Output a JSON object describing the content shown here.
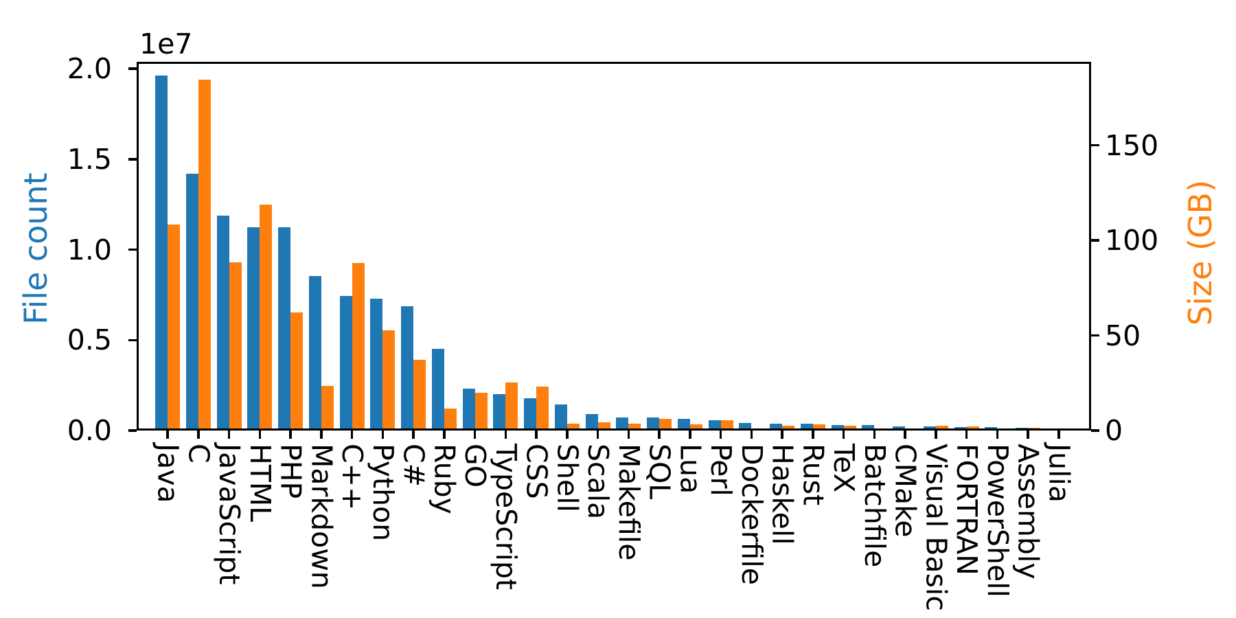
{
  "chart_data": {
    "type": "bar",
    "title": "",
    "offset_text_left": "1e7",
    "ylabel_left": "File count",
    "ylabel_right": "Size (GB)",
    "grid": false,
    "legend": "none",
    "x_tick_rotation_deg": 270,
    "categories": [
      "Java",
      "C",
      "JavaScript",
      "HTML",
      "PHP",
      "Markdown",
      "C++",
      "Python",
      "C#",
      "Ruby",
      "GO",
      "TypeScript",
      "CSS",
      "Shell",
      "Scala",
      "Makefile",
      "SQL",
      "Lua",
      "Perl",
      "Dockerfile",
      "Haskell",
      "Rust",
      "TeX",
      "Batchfile",
      "CMake",
      "Visual Basic",
      "FORTRAN",
      "PowerShell",
      "Assembly",
      "Julia"
    ],
    "series": [
      {
        "name": "File count",
        "axis": "left",
        "color": "#1f77b4",
        "values": [
          19548190,
          14143113,
          11839883,
          11178557,
          11177610,
          8464626,
          7380520,
          7226626,
          6811652,
          4473331,
          2265436,
          1940406,
          1734406,
          1385648,
          835755,
          679430,
          656671,
          578554,
          497949,
          366505,
          340380,
          322431,
          251015,
          236945,
          175282,
          155652,
          142038,
          136846,
          82905,
          58317
        ]
      },
      {
        "name": "Size (GB)",
        "axis": "right",
        "color": "#ff7f0e",
        "values": [
          107.7,
          183.83,
          87.82,
          118.12,
          61.41,
          23.09,
          87.73,
          52.03,
          36.83,
          10.95,
          19.28,
          24.59,
          22.67,
          3.01,
          3.87,
          2.92,
          5.67,
          2.81,
          4.7,
          0.71,
          1.85,
          2.68,
          2.15,
          0.7,
          0.54,
          1.91,
          1.62,
          0.69,
          0.78,
          0.29
        ]
      }
    ],
    "left_axis": {
      "ticks": [
        0,
        5000000,
        10000000,
        15000000,
        20000000
      ],
      "tick_labels": [
        "0.0",
        "0.5",
        "1.0",
        "1.5",
        "2.0"
      ],
      "ylim": [
        0,
        20380000
      ]
    },
    "right_axis": {
      "ticks": [
        0,
        50,
        100,
        150
      ],
      "tick_labels": [
        "0",
        "50",
        "100",
        "150"
      ],
      "ylim": [
        0,
        193.9
      ]
    },
    "colors": {
      "file_count": "#1f77b4",
      "size_gb": "#ff7f0e",
      "axis": "#000000",
      "background": "#ffffff"
    }
  }
}
